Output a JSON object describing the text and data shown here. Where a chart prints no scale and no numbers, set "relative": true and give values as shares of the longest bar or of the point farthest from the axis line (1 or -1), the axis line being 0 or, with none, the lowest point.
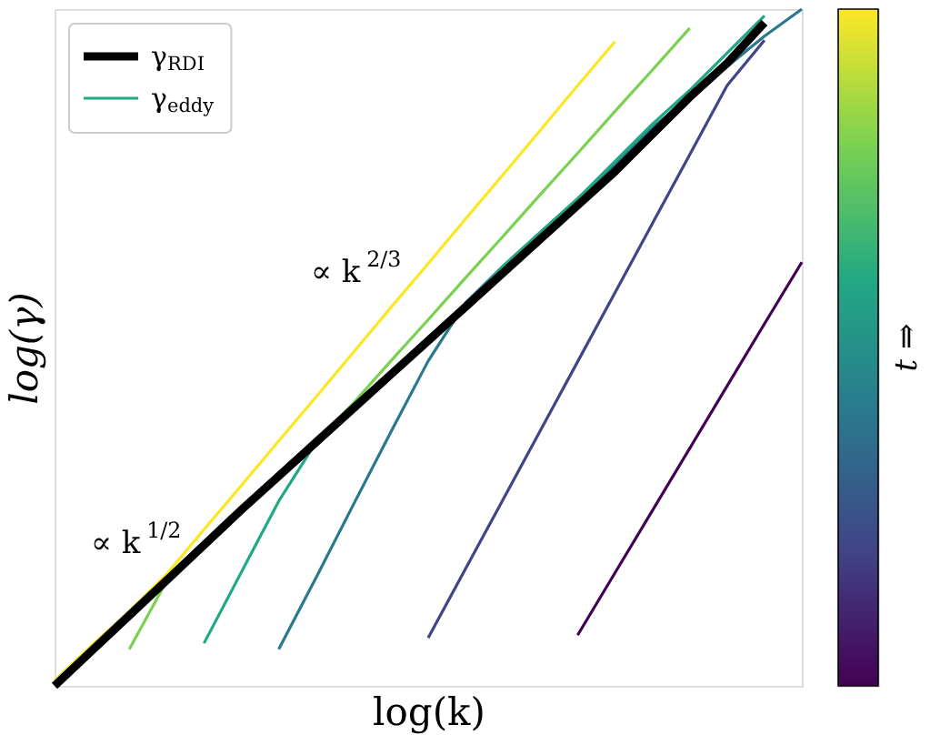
{
  "chart_data": {
    "type": "line",
    "relative": true,
    "xlabel": "log(k)",
    "ylabel": "log(γ)",
    "clabel": "t ⇒",
    "legend": "top left",
    "grid": false,
    "tick_labels": false,
    "categories": [
      null,
      null,
      null,
      null,
      null,
      null,
      null,
      null,
      null,
      null,
      null,
      null,
      null,
      null,
      null,
      null,
      null,
      null,
      null,
      null,
      null
    ],
    "series": [
      {
        "name": "γ$_{RDI}$",
        "color": "#000000",
        "values": [
          0,
          0.052,
          0.104,
          0.156,
          0.208,
          0.26,
          0.31,
          0.36,
          0.41,
          0.46,
          0.51,
          0.56,
          0.61,
          0.66,
          0.71,
          0.76,
          0.815,
          0.87,
          0.92,
          0.98,
          null
        ]
      },
      {
        "color": "#fde725",
        "values": [
          0.008,
          0.06,
          0.11,
          0.165,
          0.231,
          0.296,
          0.362,
          0.427,
          0.493,
          0.559,
          0.624,
          0.69,
          0.755,
          0.821,
          0.887,
          0.952,
          null,
          null,
          null,
          null,
          null
        ]
      },
      {
        "color": "#7ad151",
        "values": [
          null,
          null,
          0.054,
          0.155,
          0.208,
          0.26,
          0.31,
          0.36,
          0.418,
          0.48,
          0.541,
          0.603,
          0.664,
          0.726,
          0.787,
          0.849,
          0.91,
          0.972,
          null,
          null,
          null
        ]
      },
      {
        "name": "γ$_{eddy}$",
        "color": "#22a884",
        "values": [
          null,
          null,
          null,
          null,
          0.063,
          0.168,
          0.273,
          0.36,
          0.41,
          0.46,
          0.51,
          0.56,
          0.62,
          0.67,
          0.72,
          0.775,
          0.83,
          0.88,
          0.935,
          0.99,
          null
        ]
      },
      {
        "color": "#2a788e",
        "values": [
          null,
          null,
          null,
          null,
          null,
          null,
          0.054,
          0.16,
          0.268,
          0.375,
          0.48,
          0.566,
          0.62,
          0.67,
          0.72,
          0.77,
          0.825,
          0.87,
          0.915,
          0.96,
          1.0
        ]
      },
      {
        "color": "#414487",
        "values": [
          null,
          null,
          null,
          null,
          null,
          null,
          null,
          null,
          null,
          null,
          0.071,
          0.173,
          0.275,
          0.377,
          0.479,
          0.581,
          0.683,
          0.785,
          0.887,
          0.954,
          null
        ]
      },
      {
        "color": "#440154",
        "values": [
          null,
          null,
          null,
          null,
          null,
          null,
          null,
          null,
          null,
          null,
          null,
          null,
          null,
          null,
          0.075,
          0.167,
          0.259,
          0.351,
          0.443,
          0.535,
          0.626
        ]
      }
    ],
    "annotations": [
      "∝ k$^{2/3}$",
      "∝ k$^{1/2}$"
    ]
  }
}
